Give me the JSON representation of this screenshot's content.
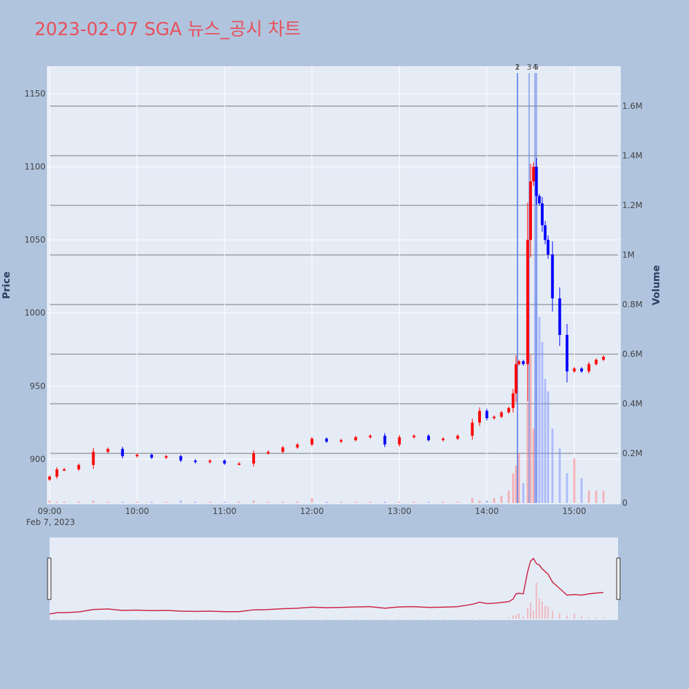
{
  "title": "2023-02-07 SGA 뉴스_공시 차트",
  "chart_data": {
    "type": "candlestick",
    "title": "2023-02-07 SGA 뉴스_공시 차트",
    "ylabel": "Price",
    "y2label": "Volume",
    "date_label": "Feb 7, 2023",
    "x_ticks": [
      "09:00",
      "10:00",
      "11:00",
      "12:00",
      "13:00",
      "14:00",
      "15:00"
    ],
    "y_ticks": [
      900,
      950,
      1000,
      1050,
      1100,
      1150
    ],
    "y2_ticks": [
      "0",
      "0.2M",
      "0.4M",
      "0.6M",
      "0.8M",
      "1M",
      "1.2M",
      "1.4M",
      "1.6M"
    ],
    "ylim": [
      870,
      1167
    ],
    "y2lim": [
      0,
      1.75
    ],
    "xlim": [
      "09:00",
      "15:30"
    ],
    "news_markers": [
      {
        "label": "1",
        "time": "14:21"
      },
      {
        "label": "2",
        "time": "14:21"
      },
      {
        "label": "3",
        "time": "14:29"
      },
      {
        "label": "4",
        "time": "14:33"
      },
      {
        "label": "5",
        "time": "14:34"
      }
    ],
    "up_color": "#ff0000",
    "down_color": "#0000ff",
    "price_series": {
      "times": [
        "09:00",
        "09:05",
        "09:10",
        "09:20",
        "09:30",
        "09:40",
        "09:50",
        "10:00",
        "10:10",
        "10:20",
        "10:30",
        "10:40",
        "10:50",
        "11:00",
        "11:10",
        "11:20",
        "11:30",
        "11:40",
        "11:50",
        "12:00",
        "12:10",
        "12:20",
        "12:30",
        "12:40",
        "12:50",
        "13:00",
        "13:10",
        "13:20",
        "13:30",
        "13:40",
        "13:50",
        "13:55",
        "14:00",
        "14:05",
        "14:10",
        "14:15",
        "14:18",
        "14:20",
        "14:22",
        "14:25",
        "14:28",
        "14:30",
        "14:32",
        "14:34",
        "14:36",
        "14:38",
        "14:40",
        "14:42",
        "14:45",
        "14:50",
        "14:55",
        "15:00",
        "15:05",
        "15:10",
        "15:15",
        "15:20"
      ],
      "close": [
        888,
        893,
        893,
        896,
        905,
        907,
        902,
        903,
        901,
        902,
        899,
        898,
        899,
        897,
        897,
        904,
        905,
        908,
        910,
        914,
        912,
        913,
        915,
        916,
        910,
        915,
        916,
        913,
        914,
        916,
        925,
        933,
        928,
        929,
        932,
        935,
        945,
        965,
        967,
        965,
        1050,
        1090,
        1100,
        1080,
        1075,
        1060,
        1050,
        1040,
        1010,
        985,
        960,
        962,
        960,
        965,
        968,
        970
      ]
    },
    "volume_series": {
      "values_M": [
        0.01,
        0.005,
        0.005,
        0.005,
        0.01,
        0.005,
        0.005,
        0.005,
        0.005,
        0.005,
        0.01,
        0.005,
        0.005,
        0.005,
        0.005,
        0.01,
        0.005,
        0.005,
        0.005,
        0.02,
        0.005,
        0.005,
        0.005,
        0.005,
        0.005,
        0.005,
        0.005,
        0.005,
        0.005,
        0.005,
        0.02,
        0.01,
        0.01,
        0.02,
        0.03,
        0.05,
        0.12,
        0.15,
        0.2,
        0.08,
        0.4,
        0.6,
        0.3,
        1.35,
        0.75,
        0.65,
        0.5,
        0.45,
        0.3,
        0.22,
        0.12,
        0.18,
        0.1,
        0.05,
        0.05,
        0.05
      ]
    }
  }
}
